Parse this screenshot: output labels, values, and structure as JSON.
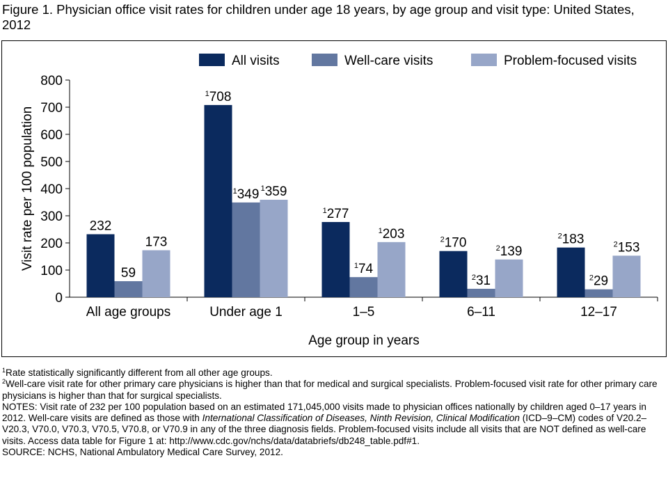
{
  "title": "Figure 1. Physician office visit rates for children under age 18 years, by age group and visit type: United States, 2012",
  "chart_data": {
    "type": "bar",
    "categories": [
      "All age groups",
      "Under age 1",
      "1–5",
      "6–11",
      "12–17"
    ],
    "category_notes": [
      null,
      "1",
      "1",
      "2",
      "2"
    ],
    "series": [
      {
        "name": "All visits",
        "color": "#0b2a5e",
        "values": [
          232,
          708,
          277,
          170,
          183
        ]
      },
      {
        "name": "Well-care visits",
        "color": "#6277a0",
        "values": [
          59,
          349,
          74,
          31,
          29
        ]
      },
      {
        "name": "Problem-focused visits",
        "color": "#97a6c8",
        "values": [
          173,
          359,
          203,
          139,
          153
        ]
      }
    ],
    "ylim": [
      0,
      800
    ],
    "yticks": [
      0,
      100,
      200,
      300,
      400,
      500,
      600,
      700,
      800
    ],
    "ylabel": "Visit rate per 100 population",
    "xlabel": "Age group in years",
    "legend": "top-right"
  },
  "footnotes": [
    {
      "mark": "1",
      "text": "Rate statistically significantly different from all other age groups."
    },
    {
      "mark": "2",
      "text": "Well-care visit rate for other primary care physicians is higher than that for medical and surgical specialists. Problem-focused visit rate for other primary care physicians is higher than that for surgical specialists."
    }
  ],
  "notes": [
    "NOTES: Visit rate of 232 per 100 population based on an estimated 171,045,000 visits made to physician offices nationally by children aged 0–17 years in 2012. Well-care visits are defined as those with ",
    "International Classification of Diseases, Ninth Revision, Clinical Modification",
    " (ICD–9–CM) codes of V20.2–V20.3, V70.0, V70.3, V70.5, V70.8, or V70.9 in any of the three diagnosis fields. Problem-focused visits include all visits that are NOT defined as well-care visits. Access data table for Figure 1 at: http://www.cdc.gov/nchs/data/databriefs/db248_table.pdf#1."
  ],
  "source": "SOURCE: NCHS, National Ambulatory Medical Care Survey, 2012."
}
